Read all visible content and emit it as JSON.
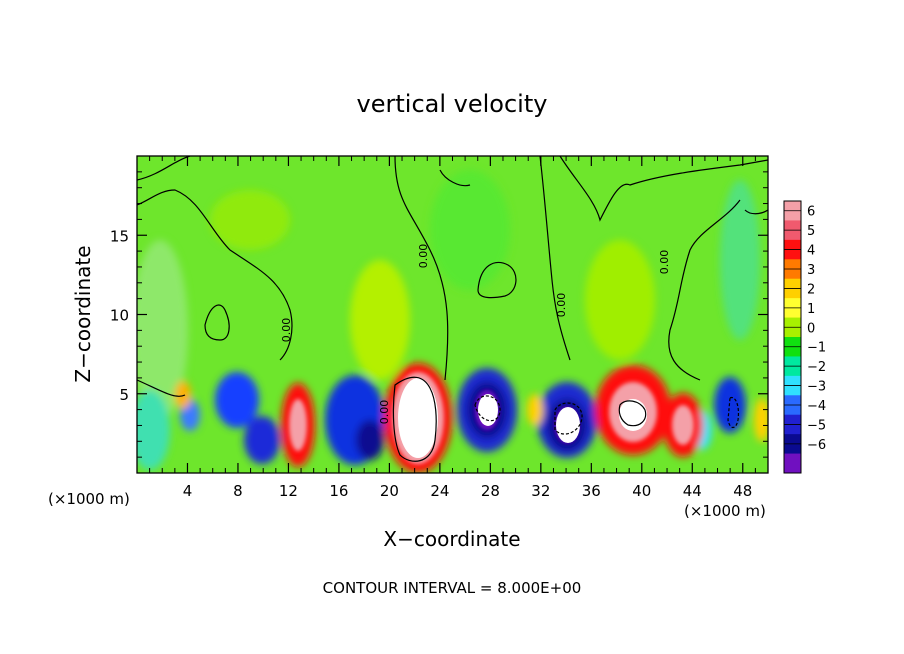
{
  "chart_data": {
    "type": "heatmap",
    "title": "vertical velocity",
    "xlabel": "X−coordinate",
    "ylabel": "Z−coordinate",
    "x_unit_left": "(×1000 m)",
    "x_unit_right": "(×1000 m)",
    "xlim": [
      0,
      50
    ],
    "ylim": [
      0,
      20
    ],
    "xticks": [
      "4",
      "8",
      "12",
      "16",
      "20",
      "24",
      "28",
      "32",
      "36",
      "40",
      "44",
      "48"
    ],
    "yticks": [
      "5",
      "10",
      "15"
    ],
    "footer": "CONTOUR INTERVAL = 8.000E+00",
    "contour_label": "0.00",
    "colorbar": {
      "levels": [
        "6",
        "5",
        "4",
        "3",
        "2",
        "1",
        "0",
        "−1",
        "−2",
        "−3",
        "−4",
        "−5",
        "−6"
      ],
      "colors": [
        "#f4a0a8",
        "#f05a6e",
        "#ff1010",
        "#ff7a00",
        "#ffd000",
        "#ffff30",
        "#a8f000",
        "#10e010",
        "#00e8a0",
        "#30e0ff",
        "#2a6aff",
        "#2020d0",
        "#0a0a90",
        "#7010c0"
      ]
    },
    "features": [
      {
        "kind": "updraft",
        "x": 13,
        "z": 3,
        "peak": 5
      },
      {
        "kind": "updraft",
        "x": 22.5,
        "z": 3.5,
        "peak": 8
      },
      {
        "kind": "updraft",
        "x": 39.5,
        "z": 4,
        "peak": 7
      },
      {
        "kind": "updraft",
        "x": 43,
        "z": 3,
        "peak": 6
      },
      {
        "kind": "updraft",
        "x": 4.3,
        "z": 4.5,
        "peak": 3
      },
      {
        "kind": "downdraft",
        "x": 8,
        "z": 4.5,
        "peak": -4
      },
      {
        "kind": "downdraft",
        "x": 10,
        "z": 2.5,
        "peak": -4
      },
      {
        "kind": "downdraft",
        "x": 17.5,
        "z": 3.5,
        "peak": -5
      },
      {
        "kind": "downdraft",
        "x": 27.5,
        "z": 4,
        "peak": -7
      },
      {
        "kind": "downdraft",
        "x": 34,
        "z": 3,
        "peak": -7
      },
      {
        "kind": "downdraft",
        "x": 47,
        "z": 4,
        "peak": -5
      }
    ]
  }
}
